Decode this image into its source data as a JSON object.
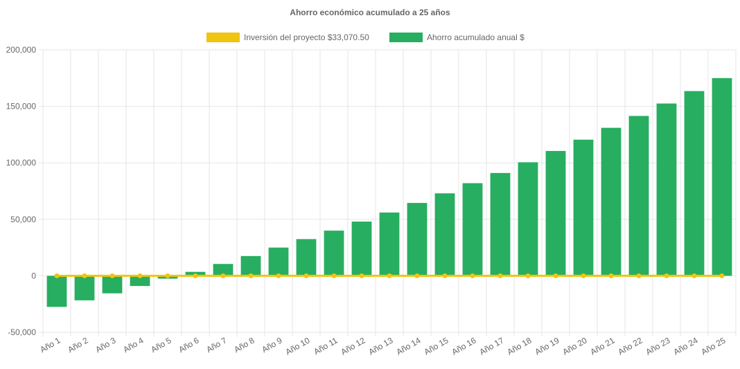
{
  "chart_data": {
    "type": "bar",
    "title": "Ahorro económico acumulado a 25 años",
    "xlabel": "",
    "ylabel": "",
    "ylim": [
      -50000,
      200000
    ],
    "yticks": [
      {
        "value": 200000,
        "label": "200,000"
      },
      {
        "value": 150000,
        "label": "150,000"
      },
      {
        "value": 100000,
        "label": "100,000"
      },
      {
        "value": 50000,
        "label": "50,000"
      },
      {
        "value": 0,
        "label": "0"
      },
      {
        "value": -50000,
        "label": "-50,000"
      }
    ],
    "grid": true,
    "legend_position": "top",
    "categories": [
      "Año 1",
      "Año 2",
      "Año 3",
      "Año 4",
      "Año 5",
      "Año 6",
      "Año 7",
      "Año 8",
      "Año 9",
      "Año 10",
      "Año 11",
      "Año 12",
      "Año 13",
      "Año 14",
      "Año 15",
      "Año 16",
      "Año 17",
      "Año 18",
      "Año 19",
      "Año 20",
      "Año 21",
      "Año 22",
      "Año 23",
      "Año 24",
      "Año 25"
    ],
    "series": [
      {
        "name": "Inversión del proyecto $33,070.50",
        "type": "line",
        "color": "#f1c40f",
        "values": [
          0,
          0,
          0,
          0,
          0,
          0,
          0,
          0,
          0,
          0,
          0,
          0,
          0,
          0,
          0,
          0,
          0,
          0,
          0,
          0,
          0,
          0,
          0,
          0,
          0
        ]
      },
      {
        "name": "Ahorro acumulado anual $",
        "type": "bar",
        "color": "#27ae60",
        "values": [
          -27500,
          -21700,
          -15500,
          -9000,
          -2500,
          3500,
          10500,
          17500,
          25000,
          32500,
          40000,
          48000,
          56000,
          64500,
          73000,
          82000,
          91000,
          100500,
          110500,
          120500,
          131000,
          141500,
          152500,
          163500,
          175000
        ]
      }
    ]
  }
}
